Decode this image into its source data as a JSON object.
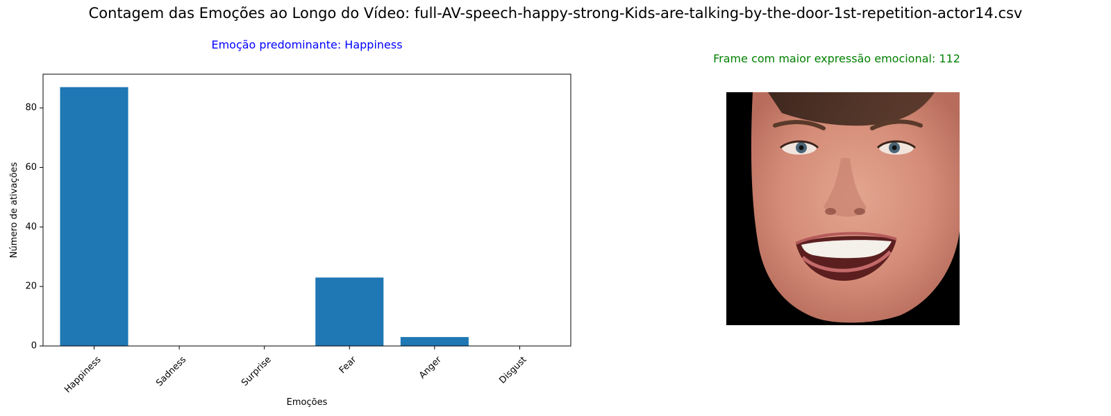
{
  "figure": {
    "suptitle": "Contagem das Emoções ao Longo do Vídeo: full-AV-speech-happy-strong-Kids-are-talking-by-the-door-1st-repetition-actor14.csv"
  },
  "left_panel": {
    "title": "Emoção predominante: Happiness",
    "title_color": "#0000ff"
  },
  "right_panel": {
    "title": "Frame com maior expressão emocional: 112",
    "title_color": "#008000",
    "image_description_icon": "face-frame-image"
  },
  "chart_data": {
    "type": "bar",
    "title": "Emoção predominante: Happiness",
    "xlabel": "Emoções",
    "ylabel": "Número de ativações",
    "categories": [
      "Happiness",
      "Sadness",
      "Surprise",
      "Fear",
      "Anger",
      "Disgust"
    ],
    "values": [
      87,
      0,
      0,
      23,
      3,
      0
    ],
    "ylim": [
      0,
      91.35
    ],
    "yticks": [
      0,
      20,
      40,
      60,
      80
    ],
    "bar_color": "#1f77b4",
    "grid": false,
    "legend": "none",
    "xtick_rotation": 45
  }
}
